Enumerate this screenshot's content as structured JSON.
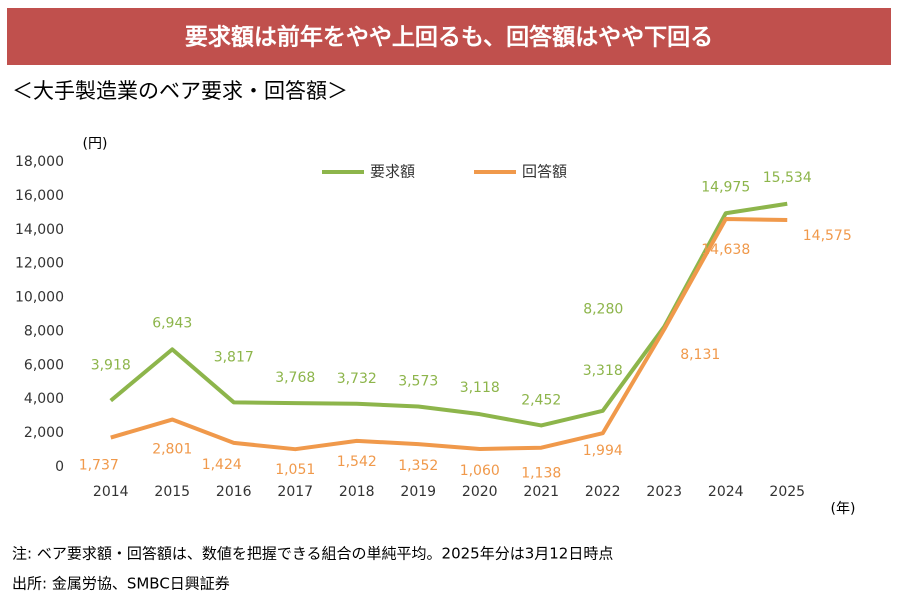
{
  "header": {
    "title": "要求額は前年をやや上回るも、回答額はやや下回る"
  },
  "chart_data": {
    "type": "line",
    "title": "＜大手製造業のベア要求・回答額＞",
    "y_unit": "(円)",
    "x_unit": "(年)",
    "categories": [
      "2014",
      "2015",
      "2016",
      "2017",
      "2018",
      "2019",
      "2020",
      "2021",
      "2022",
      "2023",
      "2024",
      "2025"
    ],
    "series": [
      {
        "name": "要求額",
        "color": "#8db54b",
        "values": [
          3918,
          6943,
          3817,
          3768,
          3732,
          3573,
          3118,
          2452,
          3318,
          8280,
          14975,
          15534
        ],
        "value_labels": [
          "3,918",
          "6,943",
          "3,817",
          "3,768",
          "3,732",
          "3,573",
          "3,118",
          "2,452",
          "3,318",
          "8,280",
          "14,975",
          "15,534"
        ]
      },
      {
        "name": "回答額",
        "color": "#f0994b",
        "values": [
          1737,
          2801,
          1424,
          1051,
          1542,
          1352,
          1060,
          1138,
          1994,
          8131,
          14638,
          14575
        ],
        "value_labels": [
          "1,737",
          "2,801",
          "1,424",
          "1,051",
          "1,542",
          "1,352",
          "1,060",
          "1,138",
          "1,994",
          "8,131",
          "14,638",
          "14,575"
        ]
      }
    ],
    "ylim": [
      0,
      18000
    ],
    "yticks": [
      0,
      {
        "value": 2000,
        "label": "2,000"
      },
      {
        "value": 4000,
        "label": "4,000"
      },
      {
        "value": 6000,
        "label": "6,000"
      },
      {
        "value": 8000,
        "label": "8,000"
      },
      {
        "value": 10000,
        "label": "10,000"
      },
      {
        "value": 12000,
        "label": "12,000"
      },
      {
        "value": 14000,
        "label": "14,000"
      },
      {
        "value": 16000,
        "label": "16,000"
      },
      {
        "value": 18000,
        "label": "18,000"
      }
    ],
    "grid": false
  },
  "notes": [
    "注: ベア要求額・回答額は、数値を把握できる組合の単純平均。2025年分は3月12日時点",
    "出所: 金属労協、SMBC日興証券"
  ]
}
